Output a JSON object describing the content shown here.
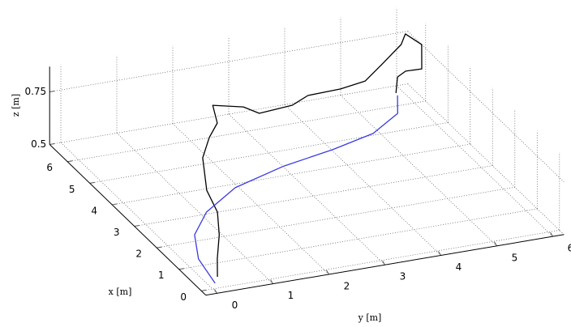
{
  "chart_data": {
    "type": "line3d",
    "xlabel": "x [m]",
    "ylabel": "y [m]",
    "zlabel": "z [m]",
    "xlim": [
      -0.2,
      6.8
    ],
    "ylim": [
      -0.2,
      6.2
    ],
    "zlim": [
      0.5,
      0.87
    ],
    "xticks": [
      0,
      1,
      2,
      3,
      4,
      5,
      6
    ],
    "yticks": [
      0,
      1,
      2,
      3,
      4,
      5,
      6
    ],
    "zticks": [
      0.5,
      0.75
    ],
    "grid": true,
    "series": [
      {
        "color": "#000000",
        "x": [
          0.03,
          0.74,
          1.68,
          2.59,
          3.52,
          4.83,
          5.59,
          6.11,
          6.01,
          5.74,
          5.38,
          5.48,
          5.76,
          5.8,
          5.95,
          5.65,
          6.32,
          6.71,
          6.18,
          5.22,
          6.07,
          6.31,
          6.1
        ],
        "y": [
          0.1,
          0.38,
          0.79,
          1.12,
          1.3,
          1.75,
          2.17,
          2.52,
          2.4,
          2.84,
          2.98,
          3.61,
          4.0,
          4.6,
          5.1,
          5.27,
          5.89,
          6.12,
          6.2,
          5.82,
          5.87,
          5.82,
          5.71
        ],
        "z": [
          0.55,
          0.55,
          0.55,
          0.55,
          0.55,
          0.55,
          0.55,
          0.55,
          0.65,
          0.65,
          0.65,
          0.65,
          0.65,
          0.65,
          0.65,
          0.75,
          0.75,
          0.75,
          0.75,
          0.75,
          0.65,
          0.6,
          0.55
        ]
      },
      {
        "color": "#3a3ae0",
        "x": [
          0.21,
          1.28,
          2.26,
          3.08,
          3.85,
          4.38,
          4.7,
          5.07,
          5.7,
          6.41
        ],
        "y": [
          0.13,
          0.26,
          0.58,
          1.12,
          1.94,
          3.02,
          4.02,
          4.89,
          5.58,
          5.86
        ],
        "z": [
          0.5,
          0.5,
          0.5,
          0.5,
          0.5,
          0.5,
          0.5,
          0.5,
          0.5,
          0.5
        ]
      }
    ]
  }
}
